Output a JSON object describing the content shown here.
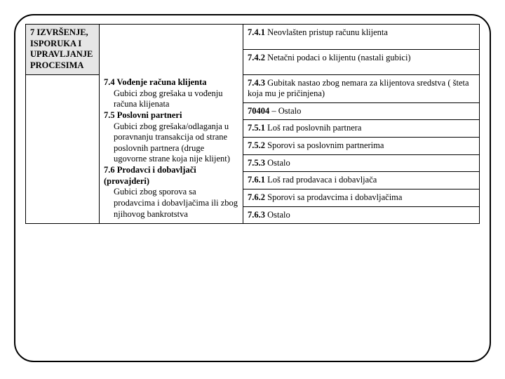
{
  "col1": {
    "heading": "7 IZVRŠENJE, ISPORUKA I UPRAVLJANJE PROCESIMA"
  },
  "col2": {
    "s74_title": "7.4 Vođenje računa klijenta",
    "s74_body": "Gubici zbog grešaka u vođenju računa klijenata",
    "s75_title": "7.5 Poslovni partneri",
    "s75_body": "Gubici zbog grešaka/odlaganja u poravnanju transakcija od strane poslovnih partnera (druge ugovorne strane koja nije klijent)",
    "s76_title": "7.6 Prodavci i dobavljači (provajderi)",
    "s76_body": "Gubici zbog sporova sa prodavcima i dobavljačima ili zbog njihovog bankrotstva"
  },
  "rows": {
    "r1_code": "7.4.1",
    "r1_text": " Neovlašten pristup računu klijenta",
    "r2_code": "7.4.2",
    "r2_text": " Netačni podaci o klijentu (nastali gubici)",
    "r3_code": "7.4.3",
    "r3_text": " Gubitak nastao zbog nemara za klijentova sredstva ( šteta koja mu je pričinjena)",
    "r4_code": "70404",
    "r4_text": " – Ostalo",
    "r5_code": "7.5.1",
    "r5_text": " Loš rad poslovnih partnera",
    "r6_code": "7.5.2",
    "r6_text": " Sporovi sa poslovnim partnerima",
    "r7_code": "7.5.3",
    "r7_text": " Ostalo",
    "r8_code": "7.6.1",
    "r8_text": " Loš rad prodavaca i dobavljača",
    "r9_code": "7.6.2",
    "r9_text": " Sporovi sa prodavcima i dobavljačima",
    "r10_code": "7.6.3",
    "r10_text": " Ostalo"
  }
}
